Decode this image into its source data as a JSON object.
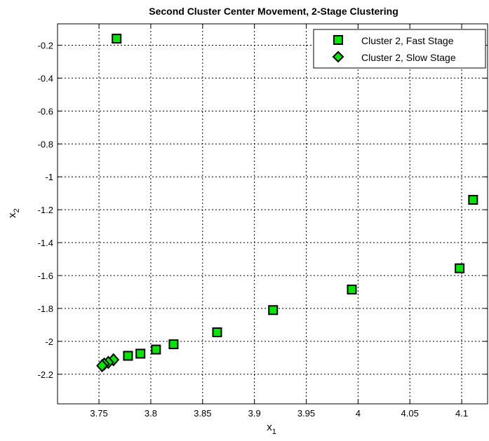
{
  "chart_data": {
    "type": "scatter",
    "title": "Second Cluster Center Movement, 2-Stage Clustering",
    "xlabel": "x",
    "xlabel_sub": "1",
    "ylabel": "x",
    "ylabel_sub": "2",
    "xlim": [
      3.71,
      4.125
    ],
    "ylim": [
      -2.38,
      -0.07
    ],
    "xticks": [
      3.75,
      3.8,
      3.85,
      3.9,
      3.95,
      4,
      4.05,
      4.1
    ],
    "xtick_labels": [
      "3.75",
      "3.8",
      "3.85",
      "3.9",
      "3.95",
      "4",
      "4.05",
      "4.1"
    ],
    "yticks": [
      -0.2,
      -0.4,
      -0.6,
      -0.8,
      -1,
      -1.2,
      -1.4,
      -1.6,
      -1.8,
      -2,
      -2.2
    ],
    "ytick_labels": [
      "-0.2",
      "-0.4",
      "-0.6",
      "-0.8",
      "-1",
      "-1.2",
      "-1.4",
      "-1.6",
      "-1.8",
      "-2",
      "-2.2"
    ],
    "grid": true,
    "legend_position": "top-right",
    "marker_color": "#00e600",
    "series": [
      {
        "name": "Cluster 2, Fast Stage",
        "marker": "square",
        "x": [
          3.767,
          4.111,
          4.098,
          3.994,
          3.918,
          3.864,
          3.822,
          3.805,
          3.79,
          3.778
        ],
        "y": [
          -0.16,
          -1.14,
          -1.556,
          -1.685,
          -1.81,
          -1.945,
          -2.018,
          -2.05,
          -2.075,
          -2.088
        ]
      },
      {
        "name": "Cluster 2, Slow Stage",
        "marker": "diamond",
        "x": [
          3.764,
          3.759,
          3.755,
          3.753
        ],
        "y": [
          -2.112,
          -2.128,
          -2.138,
          -2.148
        ]
      }
    ]
  }
}
